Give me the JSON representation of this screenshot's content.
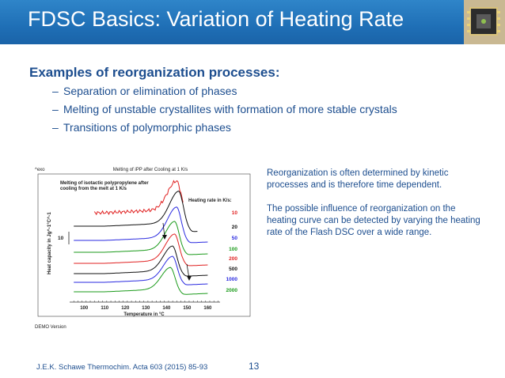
{
  "slide": {
    "title": "FDSC Basics: Variation of Heating Rate",
    "heading": "Examples of reorganization processes:",
    "bullets": [
      "Separation or elimination of phases",
      "Melting of unstable crystallites with formation of more stable crystals",
      "Transitions of polymorphic phases"
    ],
    "side_text": [
      "Reorganization is often determined by kinetic processes and is therefore time dependent.",
      "The possible influence of reorganization on the heating curve can be detected by varying the heating rate of the Flash DSC over a wide range."
    ],
    "footer": "J.E.K. Schawe Thermochim. Acta 603 (2015) 85-93",
    "page_number": "13"
  },
  "figure": {
    "exo_label": "^exo",
    "top_title": "Melting of iPP after Cooling at 1 K/s",
    "inner_title_1": "Melting of isotactic polypropylene after",
    "inner_title_2": "cooling from the melt at 1 K/s",
    "legend_title": "Heating rate in K/s:",
    "scale_label": "10",
    "ylabel": "Heat capacity in Jg^-1°C^-1",
    "xlabel": "Temperature in °C",
    "demo": "DEMO Version"
  },
  "chart_data": {
    "type": "line",
    "title": "Melting of iPP after Cooling at 1 K/s",
    "xlabel": "Temperature in °C",
    "ylabel": "Heat capacity in Jg^-1°C^-1",
    "xlim": [
      93,
      166
    ],
    "x_ticks": [
      "100",
      "110",
      "120",
      "130",
      "140",
      "150",
      "160"
    ],
    "legend_title": "Heating rate in K/s:",
    "series": [
      {
        "name": "10",
        "color": "#e02020",
        "peak_temperature": 145,
        "x_start": 105,
        "x_end": 148
      },
      {
        "name": "20",
        "color": "#111111",
        "peak_temperature": 146,
        "x_start": 95,
        "x_end": 155
      },
      {
        "name": "50",
        "color": "#2a2ae0",
        "peak_temperature": 145,
        "x_start": 95,
        "x_end": 160
      },
      {
        "name": "100",
        "color": "#1a9a1a",
        "peak_temperature": 144,
        "x_start": 95,
        "x_end": 160
      },
      {
        "name": "200",
        "color": "#e02020",
        "peak_temperature": 144,
        "x_start": 95,
        "x_end": 160
      },
      {
        "name": "500",
        "color": "#111111",
        "peak_temperature": 143,
        "x_start": 95,
        "x_end": 160
      },
      {
        "name": "1000",
        "color": "#2a2ae0",
        "peak_temperature": 143,
        "x_start": 95,
        "x_end": 160
      },
      {
        "name": "2000",
        "color": "#1a9a1a",
        "peak_temperature": 142,
        "x_start": 95,
        "x_end": 160
      }
    ]
  }
}
